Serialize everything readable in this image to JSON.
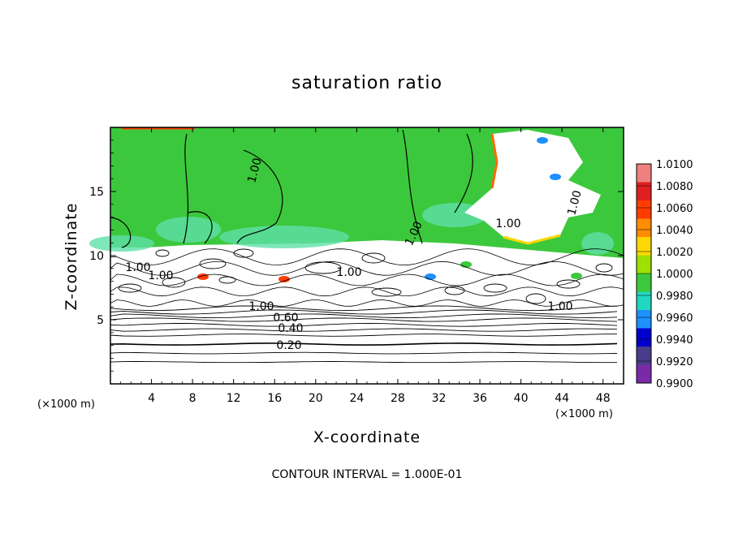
{
  "chart_data": {
    "type": "heatmap",
    "title": "saturation ratio",
    "xlabel": "X-coordinate",
    "ylabel": "Z-coordinate",
    "x_unit": "(×1000 m)",
    "xlim": [
      0,
      50
    ],
    "ylim": [
      0,
      20
    ],
    "x_ticks": [
      4,
      8,
      12,
      16,
      20,
      24,
      28,
      32,
      36,
      40,
      44,
      48
    ],
    "y_ticks": [
      5,
      10,
      15
    ],
    "colorbar": {
      "labels": [
        "1.0100",
        "1.0080",
        "1.0060",
        "1.0040",
        "1.0020",
        "1.0000",
        "0.9980",
        "0.9960",
        "0.9940",
        "0.9920",
        "0.9900"
      ],
      "colors": [
        "#f08080",
        "#e02020",
        "#ff3c00",
        "#ff8c00",
        "#ffd700",
        "#a0e000",
        "#3cc83c",
        "#20d8c0",
        "#1e90ff",
        "#0000cd",
        "#483d8b",
        "#7a2aa8"
      ]
    },
    "contour_labels": [
      "1.00",
      "1.00",
      "1.00",
      "1.00",
      "1.00",
      "1.00",
      "1.00",
      "1.00",
      "1.00",
      "0.60",
      "0.40",
      "0.20"
    ],
    "contour_interval_text": "CONTOUR INTERVAL = 1.000E-01"
  }
}
